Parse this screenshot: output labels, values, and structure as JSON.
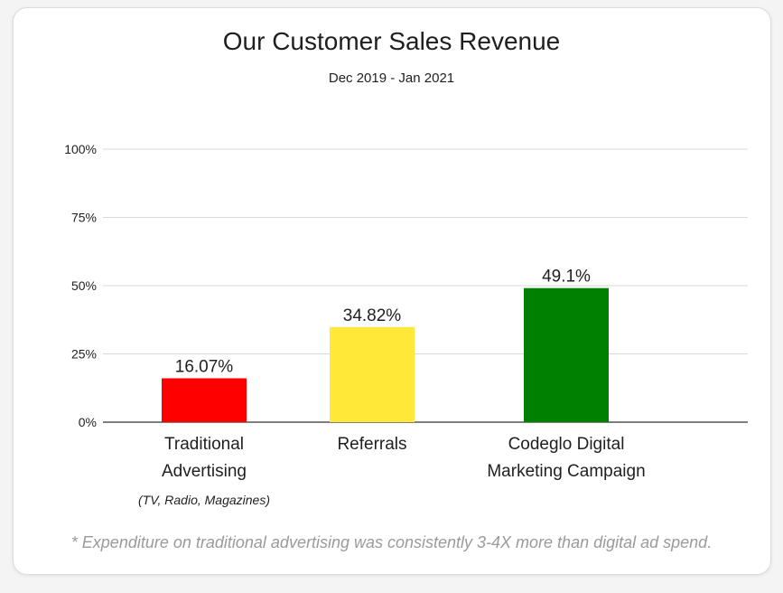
{
  "title": "Our Customer Sales Revenue",
  "subtitle": "Dec 2019 - Jan 2021",
  "footnote": "* Expenditure on traditional advertising was consistently 3-4X more than digital ad spend.",
  "colors": {
    "traditional": "#ff0000",
    "referrals": "#ffe838",
    "digital": "#008000",
    "grid": "#d9d9d9",
    "axis": "#333333",
    "text": "#1f1f1f",
    "note": "#9a9a9a"
  },
  "chart_data": {
    "type": "bar",
    "ylim": [
      0,
      100
    ],
    "yticks": [
      0,
      25,
      50,
      75,
      100
    ],
    "ytick_labels": [
      "0%",
      "25%",
      "50%",
      "75%",
      "100%"
    ],
    "categories": [
      {
        "lines": [
          "Traditional",
          "Advertising"
        ],
        "sub": "(TV, Radio, Magazines)"
      },
      {
        "lines": [
          "Referrals"
        ],
        "sub": ""
      },
      {
        "lines": [
          "Codeglo Digital",
          "Marketing Campaign"
        ],
        "sub": ""
      }
    ],
    "values": [
      16.07,
      34.82,
      49.1
    ],
    "value_labels": [
      "16.07%",
      "34.82%",
      "49.1%"
    ],
    "bar_colors": [
      "#ff0000",
      "#ffe838",
      "#008000"
    ],
    "grid": true
  }
}
